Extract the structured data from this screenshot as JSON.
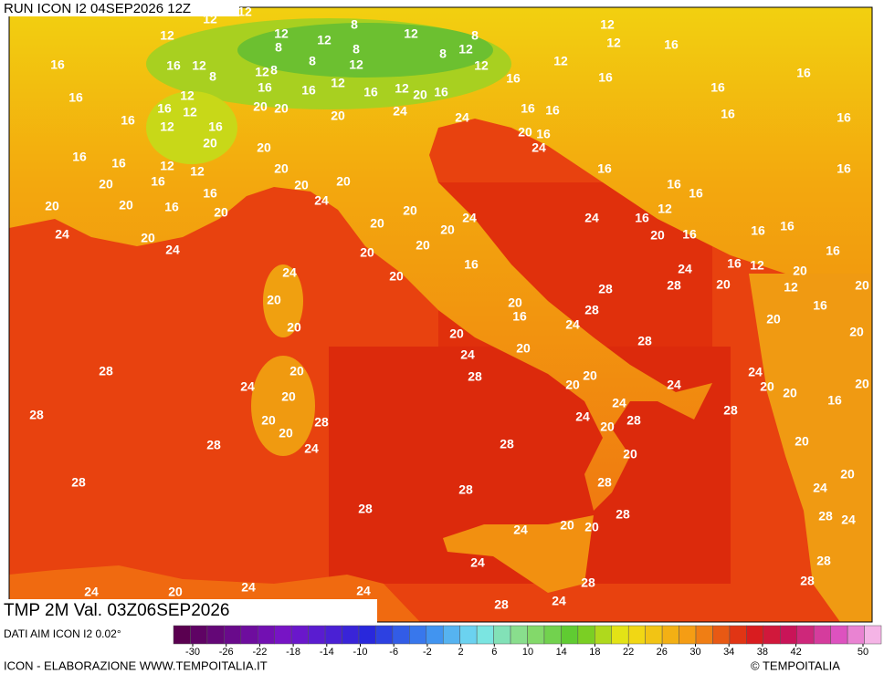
{
  "header": {
    "run": "RUN ICON I2 04SEP2026 12Z"
  },
  "map": {
    "valid": "TMP 2M Val. 03Z06SEP2026",
    "contour_labels": [
      12,
      12,
      12,
      8,
      12,
      12,
      12,
      8,
      12,
      12,
      16,
      16,
      16,
      12,
      8,
      8,
      8,
      8,
      12,
      8,
      12,
      12,
      12,
      16,
      16,
      16,
      16,
      16,
      12,
      16,
      12,
      8,
      12,
      16,
      16,
      12,
      16,
      12,
      20,
      16,
      20,
      20,
      20,
      24,
      24,
      16,
      16,
      16,
      16,
      16,
      12,
      16,
      20,
      20,
      20,
      16,
      24,
      16,
      16,
      12,
      12,
      20,
      16,
      16,
      20,
      16,
      20,
      20,
      16,
      24,
      16,
      16,
      20,
      16,
      20,
      20,
      12,
      24,
      20,
      20,
      24,
      16,
      16,
      16,
      16,
      20,
      20,
      24,
      20,
      24,
      20,
      20,
      16,
      16,
      24,
      16,
      12,
      20,
      24,
      20,
      28,
      28,
      20,
      12,
      20,
      20,
      20,
      28,
      16,
      16,
      24,
      20,
      20,
      20,
      28,
      20,
      20,
      24,
      28,
      20,
      28,
      24,
      20,
      24,
      20,
      24,
      20,
      20,
      20,
      20,
      24,
      16,
      28,
      24,
      28,
      20,
      20,
      28,
      28,
      20,
      24,
      28,
      28,
      20,
      20,
      28,
      28,
      28,
      20,
      24,
      28,
      28,
      24,
      28,
      20,
      20,
      24,
      24,
      28,
      28,
      28,
      24,
      20,
      24,
      24,
      24,
      28
    ]
  },
  "legend": {
    "source": "DATI AIM ICON I2 0.02°",
    "ticks": [
      -30,
      -26,
      -22,
      -18,
      -14,
      -10,
      -6,
      -2,
      2,
      6,
      10,
      14,
      18,
      22,
      26,
      30,
      34,
      38,
      42,
      50
    ]
  },
  "footer": {
    "credit": "ICON - ELABORAZIONE WWW.TEMPOITALIA.IT",
    "copyright": "© TEMPOITALIA"
  }
}
